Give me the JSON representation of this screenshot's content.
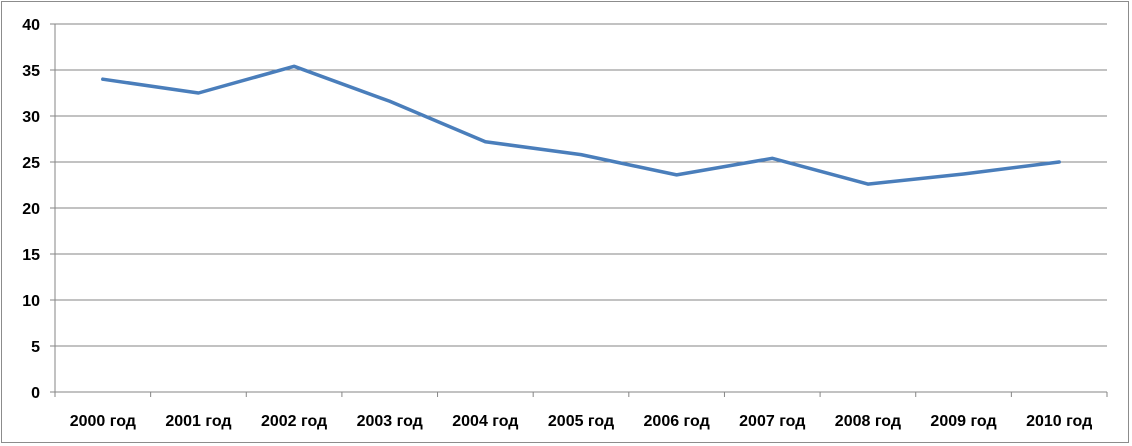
{
  "chart_data": {
    "type": "line",
    "title": "",
    "xlabel": "",
    "ylabel": "",
    "categories": [
      "2000 год",
      "2001 год",
      "2002 год",
      "2003 год",
      "2004 год",
      "2005 год",
      "2006 год",
      "2007 год",
      "2008 год",
      "2009 год",
      "2010 год"
    ],
    "series": [
      {
        "values": [
          34.0,
          32.5,
          35.4,
          31.6,
          27.2,
          25.8,
          23.6,
          25.4,
          22.6,
          23.7,
          25.0
        ],
        "color": "#4a7ebb"
      }
    ],
    "ylim": [
      0,
      40
    ],
    "yticks": [
      "0",
      "5",
      "10",
      "15",
      "20",
      "25",
      "30",
      "35",
      "40"
    ],
    "grid": true,
    "legend": "none"
  }
}
